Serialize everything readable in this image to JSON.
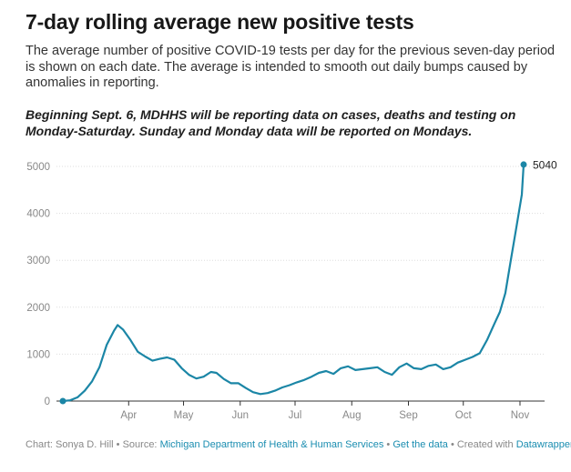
{
  "header": {
    "title": "7-day rolling average new positive tests",
    "subtitle": "The average number of positive COVID-19 tests per day for the previous seven-day period is shown on each date. The average is intended to smooth out daily bumps caused by anomalies in reporting.",
    "note": "Beginning Sept. 6, MDHHS will be reporting data on cases, deaths and testing on Monday-Saturday. Sunday and Monday data will be reported on Mondays."
  },
  "footer": {
    "chart_by": "Chart: Sonya D. Hill",
    "source_prefix": "Source:",
    "source": "Michigan Department of Health & Human Services",
    "get_data": "Get the data",
    "created_with": "Created with",
    "tool": "Datawrapper",
    "separator": "•"
  },
  "colors": {
    "line": "#1b86a6",
    "grid": "#dddddd",
    "tick_label": "#888888",
    "link": "#1a8db0"
  },
  "chart_data": {
    "type": "line",
    "title": "7-day rolling average new positive tests",
    "xlabel": "",
    "ylabel": "",
    "ylim": [
      0,
      5000
    ],
    "yticks": [
      0,
      1000,
      2000,
      3000,
      4000,
      5000
    ],
    "xlim": [
      "2020-03-10",
      "2020-11-17"
    ],
    "xticks": [
      {
        "date": "2020-04-15",
        "label": "Apr"
      },
      {
        "date": "2020-05-15",
        "label": "May"
      },
      {
        "date": "2020-06-15",
        "label": "Jun"
      },
      {
        "date": "2020-07-15",
        "label": "Jul"
      },
      {
        "date": "2020-08-15",
        "label": "Aug"
      },
      {
        "date": "2020-09-15",
        "label": "Sep"
      },
      {
        "date": "2020-10-15",
        "label": "Oct"
      },
      {
        "date": "2020-11-15",
        "label": "Nov"
      }
    ],
    "grid": true,
    "end_label": "5040",
    "series": [
      {
        "values": [
          [
            "2020-03-10",
            0
          ],
          [
            "2020-03-14",
            15
          ],
          [
            "2020-03-18",
            80
          ],
          [
            "2020-03-22",
            220
          ],
          [
            "2020-03-26",
            420
          ],
          [
            "2020-03-30",
            720
          ],
          [
            "2020-04-03",
            1200
          ],
          [
            "2020-04-07",
            1500
          ],
          [
            "2020-04-09",
            1620
          ],
          [
            "2020-04-12",
            1520
          ],
          [
            "2020-04-16",
            1300
          ],
          [
            "2020-04-20",
            1050
          ],
          [
            "2020-04-24",
            950
          ],
          [
            "2020-04-28",
            860
          ],
          [
            "2020-05-02",
            900
          ],
          [
            "2020-05-06",
            930
          ],
          [
            "2020-05-10",
            880
          ],
          [
            "2020-05-14",
            700
          ],
          [
            "2020-05-18",
            560
          ],
          [
            "2020-05-22",
            480
          ],
          [
            "2020-05-26",
            520
          ],
          [
            "2020-05-30",
            620
          ],
          [
            "2020-06-02",
            600
          ],
          [
            "2020-06-06",
            470
          ],
          [
            "2020-06-10",
            380
          ],
          [
            "2020-06-14",
            380
          ],
          [
            "2020-06-18",
            280
          ],
          [
            "2020-06-22",
            190
          ],
          [
            "2020-06-26",
            150
          ],
          [
            "2020-06-30",
            170
          ],
          [
            "2020-07-04",
            220
          ],
          [
            "2020-07-08",
            290
          ],
          [
            "2020-07-12",
            340
          ],
          [
            "2020-07-16",
            400
          ],
          [
            "2020-07-20",
            450
          ],
          [
            "2020-07-24",
            520
          ],
          [
            "2020-07-28",
            600
          ],
          [
            "2020-08-01",
            640
          ],
          [
            "2020-08-05",
            580
          ],
          [
            "2020-08-09",
            700
          ],
          [
            "2020-08-13",
            740
          ],
          [
            "2020-08-17",
            660
          ],
          [
            "2020-08-21",
            680
          ],
          [
            "2020-08-25",
            700
          ],
          [
            "2020-08-29",
            720
          ],
          [
            "2020-09-02",
            620
          ],
          [
            "2020-09-06",
            560
          ],
          [
            "2020-09-10",
            720
          ],
          [
            "2020-09-14",
            800
          ],
          [
            "2020-09-18",
            700
          ],
          [
            "2020-09-22",
            680
          ],
          [
            "2020-09-26",
            750
          ],
          [
            "2020-09-30",
            780
          ],
          [
            "2020-10-04",
            680
          ],
          [
            "2020-10-08",
            720
          ],
          [
            "2020-10-12",
            820
          ],
          [
            "2020-10-16",
            880
          ],
          [
            "2020-10-20",
            940
          ],
          [
            "2020-10-24",
            1020
          ],
          [
            "2020-10-28",
            1300
          ],
          [
            "2020-11-01",
            1650
          ],
          [
            "2020-11-04",
            1900
          ],
          [
            "2020-11-07",
            2300
          ],
          [
            "2020-11-10",
            3000
          ],
          [
            "2020-11-13",
            3700
          ],
          [
            "2020-11-16",
            4400
          ],
          [
            "2020-11-17",
            5040
          ]
        ]
      }
    ]
  }
}
